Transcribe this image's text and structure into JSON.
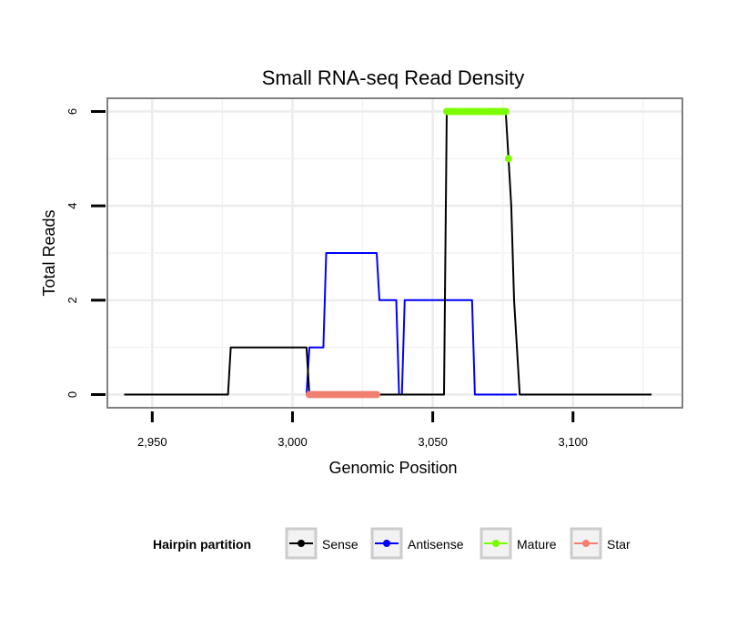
{
  "chart_data": {
    "type": "line",
    "title": "Small RNA-seq Read Density",
    "xlabel": "Genomic Position",
    "ylabel": "Total Reads",
    "xlim": [
      2934,
      3139
    ],
    "ylim": [
      -0.28,
      6.28
    ],
    "x_ticks": [
      2950,
      3000,
      3050,
      3100
    ],
    "x_tick_labels": [
      "2,950",
      "3,000",
      "3,050",
      "3,100"
    ],
    "y_ticks": [
      0,
      2,
      4,
      6
    ],
    "y_tick_labels": [
      "0",
      "2",
      "4",
      "6"
    ],
    "grid": true,
    "legend_title": "Hairpin partition",
    "legend_position": "bottom",
    "series": [
      {
        "name": "Sense",
        "color": "#000000",
        "kind": "line",
        "x": [
          2940,
          2977,
          2978,
          3005,
          3006,
          3054,
          3055,
          3076,
          3077,
          3078,
          3079,
          3080,
          3081,
          3128
        ],
        "y": [
          0,
          0,
          1,
          1,
          0,
          0,
          6,
          6,
          5,
          4,
          2,
          1,
          0,
          0
        ]
      },
      {
        "name": "Antisense",
        "color": "#0000ff",
        "kind": "line",
        "x": [
          3005,
          3006,
          3011,
          3012,
          3030,
          3031,
          3037,
          3038,
          3039,
          3040,
          3064,
          3065,
          3080
        ],
        "y": [
          0,
          1,
          1,
          3,
          3,
          2,
          2,
          0,
          0,
          2,
          2,
          0,
          0
        ]
      },
      {
        "name": "Mature",
        "color": "#7cfc00",
        "kind": "points",
        "x": [
          3055,
          3056,
          3057,
          3058,
          3059,
          3060,
          3061,
          3062,
          3063,
          3064,
          3065,
          3066,
          3067,
          3068,
          3069,
          3070,
          3071,
          3072,
          3073,
          3074,
          3075,
          3076,
          3077
        ],
        "y": [
          6,
          6,
          6,
          6,
          6,
          6,
          6,
          6,
          6,
          6,
          6,
          6,
          6,
          6,
          6,
          6,
          6,
          6,
          6,
          6,
          6,
          6,
          5
        ]
      },
      {
        "name": "Star",
        "color": "#f08070",
        "kind": "points",
        "x": [
          3006,
          3007,
          3008,
          3009,
          3010,
          3011,
          3012,
          3013,
          3014,
          3015,
          3016,
          3017,
          3018,
          3019,
          3020,
          3021,
          3022,
          3023,
          3024,
          3025,
          3026,
          3027,
          3028,
          3029,
          3030
        ],
        "y": [
          0,
          0,
          0,
          0,
          0,
          0,
          0,
          0,
          0,
          0,
          0,
          0,
          0,
          0,
          0,
          0,
          0,
          0,
          0,
          0,
          0,
          0,
          0,
          0,
          0
        ]
      }
    ]
  }
}
